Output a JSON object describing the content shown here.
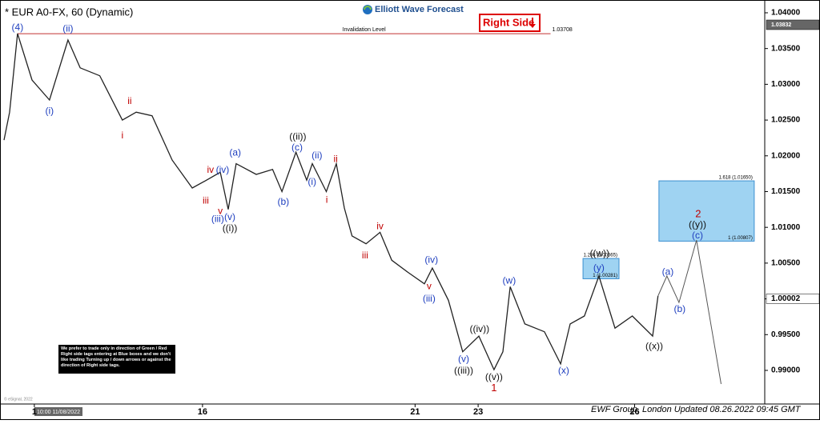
{
  "chart_data": {
    "type": "line",
    "title": "* EUR A0-FX, 60 (Dynamic)",
    "logo": "Elliott Wave Forecast",
    "right_side_tag": "Right Side",
    "copyright": "© eSignal, 2022",
    "cursor_label": "10:00 11/08/2022",
    "footer": "EWF Group, London Updated 08.26.2022 09:45 GMT",
    "disclaimer": "We prefer to trade only in direction of Green / Red Right side tags entering at Blue boxes and we don't like trading Turning up / down arrows or against the direction of Right side tags.",
    "xlim": [
      -1.7,
      325.7
    ],
    "ylim": [
      0.9853,
      1.04134
    ],
    "xticks": [
      {
        "value": 13,
        "label": "1"
      },
      {
        "value": 85,
        "label": "16"
      },
      {
        "value": 176,
        "label": "21"
      },
      {
        "value": 203,
        "label": "23"
      },
      {
        "value": 270,
        "label": "26"
      }
    ],
    "yticks": [
      {
        "value": 0.99,
        "label": "0.99000"
      },
      {
        "value": 0.995,
        "label": "0.99500"
      },
      {
        "value": 1.0,
        "label": "1.00000"
      },
      {
        "value": 1.005,
        "label": "1.00500"
      },
      {
        "value": 1.01,
        "label": "1.01000"
      },
      {
        "value": 1.015,
        "label": "1.01500"
      },
      {
        "value": 1.02,
        "label": "1.02000"
      },
      {
        "value": 1.025,
        "label": "1.02500"
      },
      {
        "value": 1.03,
        "label": "1.03000"
      },
      {
        "value": 1.035,
        "label": "1.03500"
      },
      {
        "value": 1.04,
        "label": "1.04000"
      }
    ],
    "x": [
      0,
      2.4,
      5.8,
      12,
      19.5,
      27.4,
      32.6,
      41,
      50.7,
      56.6,
      63.4,
      72,
      80.6,
      86.7,
      92.6,
      96,
      99.4,
      108,
      115,
      119,
      125,
      129.6,
      132,
      138,
      142.3,
      145.7,
      149,
      155,
      161,
      166,
      173,
      180,
      183.4,
      190.3,
      196.4,
      203.3,
      209.8,
      213.6,
      216.7,
      223,
      231.4,
      238.3,
      242.4,
      248.5,
      254.7,
      261.6,
      269,
      277.7,
      280,
      283.8,
      289,
      296.5,
      307
    ],
    "series": [
      {
        "color": "#222222",
        "values": [
          1.0222,
          1.0261,
          1.0371,
          1.0306,
          1.0278,
          1.0362,
          1.0323,
          1.0312,
          1.025,
          1.0261,
          1.0256,
          1.0194,
          1.0155,
          1.0166,
          1.0177,
          1.0125,
          1.0189,
          1.0174,
          1.0181,
          1.015,
          1.0205,
          1.0166,
          1.0189,
          1.015,
          1.0189,
          1.0127,
          1.0088,
          1.0077,
          1.0093,
          1.0054,
          1.0037,
          1.0021,
          1.0043,
          0.9998,
          0.9926,
          0.9948,
          0.9901,
          0.9926,
          1.0017,
          0.9965,
          0.9954,
          0.9909,
          0.9965,
          0.9976,
          1.0032,
          0.9959,
          0.9976,
          0.9948,
          1.0004,
          null,
          null,
          null,
          null
        ]
      },
      {
        "color": "#555555",
        "values": [
          null,
          null,
          null,
          null,
          null,
          null,
          null,
          null,
          null,
          null,
          null,
          null,
          null,
          null,
          null,
          null,
          null,
          null,
          null,
          null,
          null,
          null,
          null,
          null,
          null,
          null,
          null,
          null,
          null,
          null,
          null,
          null,
          null,
          null,
          null,
          null,
          null,
          null,
          null,
          null,
          null,
          null,
          null,
          null,
          null,
          null,
          null,
          null,
          1.0004,
          1.0032,
          0.9995,
          1.0082,
          0.9881
        ]
      }
    ],
    "invalidation": {
      "text": "Invalidation Level",
      "value": 1.03708,
      "label": "1.03708",
      "x": [
        5.8,
        234
      ]
    },
    "price_tags": [
      {
        "value": 1.03832,
        "label": "1.03832"
      },
      {
        "value": 1.00002,
        "label": "1.00002"
      }
    ],
    "boxes": [
      {
        "x": [
          247.9,
          263.3
        ],
        "y": [
          1.00281,
          1.00565
        ],
        "upper_label": "1.236 (1.00565)",
        "lower_label": "1 (1.00281)"
      },
      {
        "x": [
          280.4,
          321.2
        ],
        "y": [
          1.00807,
          1.0165
        ],
        "upper_label": "1.618 (1.01650)",
        "lower_label": "1 (1.00807)"
      }
    ],
    "annotations": [
      {
        "text": "(4)",
        "x": 5.8,
        "y": 1.0379,
        "color": "#1f3fbf"
      },
      {
        "text": "(ii)",
        "x": 27.4,
        "y": 1.0377,
        "color": "#1f3fbf"
      },
      {
        "text": "(i)",
        "x": 19.5,
        "y": 1.0262,
        "color": "#1f3fbf"
      },
      {
        "text": "ii",
        "x": 53.8,
        "y": 1.0276,
        "color": "#c00000"
      },
      {
        "text": "i",
        "x": 50.7,
        "y": 1.0228,
        "color": "#c00000"
      },
      {
        "text": "(a)",
        "x": 99,
        "y": 1.0204,
        "color": "#1f3fbf"
      },
      {
        "text": "iv",
        "x": 88.4,
        "y": 1.018,
        "color": "#c00000"
      },
      {
        "text": "(iv)",
        "x": 93.6,
        "y": 1.018,
        "color": "#1f3fbf"
      },
      {
        "text": "iii",
        "x": 86.4,
        "y": 1.0137,
        "color": "#c00000"
      },
      {
        "text": "v",
        "x": 92.6,
        "y": 1.0122,
        "color": "#c00000"
      },
      {
        "text": "(iii)",
        "x": 91.5,
        "y": 1.0111,
        "color": "#1f3fbf"
      },
      {
        "text": "(v)",
        "x": 96.7,
        "y": 1.0114,
        "color": "#1f3fbf"
      },
      {
        "text": "((i))",
        "x": 96.7,
        "y": 1.0098,
        "color": "#111111"
      },
      {
        "text": "((ii))",
        "x": 125.8,
        "y": 1.0226,
        "color": "#111111"
      },
      {
        "text": "(c)",
        "x": 125.5,
        "y": 1.0211,
        "color": "#1f3fbf"
      },
      {
        "text": "(ii)",
        "x": 134,
        "y": 1.02,
        "color": "#1f3fbf"
      },
      {
        "text": "(i)",
        "x": 131.9,
        "y": 1.0163,
        "color": "#1f3fbf"
      },
      {
        "text": "(b)",
        "x": 119.6,
        "y": 1.0135,
        "color": "#1f3fbf"
      },
      {
        "text": "ii",
        "x": 142,
        "y": 1.0195,
        "color": "#c00000"
      },
      {
        "text": "i",
        "x": 138.2,
        "y": 1.0138,
        "color": "#c00000"
      },
      {
        "text": "iv",
        "x": 161,
        "y": 1.0101,
        "color": "#c00000"
      },
      {
        "text": "iii",
        "x": 154.6,
        "y": 1.006,
        "color": "#c00000"
      },
      {
        "text": "(iv)",
        "x": 183,
        "y": 1.0054,
        "color": "#1f3fbf"
      },
      {
        "text": "v",
        "x": 182,
        "y": 1.0017,
        "color": "#c00000"
      },
      {
        "text": "(iii)",
        "x": 182,
        "y": 1.0,
        "color": "#1f3fbf"
      },
      {
        "text": "((iv))",
        "x": 203.6,
        "y": 0.9957,
        "color": "#111111"
      },
      {
        "text": "(v)",
        "x": 196.8,
        "y": 0.9915,
        "color": "#1f3fbf"
      },
      {
        "text": "((iii))",
        "x": 196.8,
        "y": 0.9899,
        "color": "#111111"
      },
      {
        "text": "((v))",
        "x": 209.8,
        "y": 0.989,
        "color": "#111111"
      },
      {
        "text": "1",
        "x": 209.8,
        "y": 0.9875,
        "color": "#c00000"
      },
      {
        "text": "(w)",
        "x": 216.3,
        "y": 1.0025,
        "color": "#1f3fbf"
      },
      {
        "text": "(x)",
        "x": 239.6,
        "y": 0.9899,
        "color": "#1f3fbf"
      },
      {
        "text": "((w))",
        "x": 255,
        "y": 1.0063,
        "color": "#111111"
      },
      {
        "text": "(y)",
        "x": 254.7,
        "y": 1.0043,
        "color": "#1f3fbf"
      },
      {
        "text": "((x))",
        "x": 278.4,
        "y": 0.9933,
        "color": "#111111"
      },
      {
        "text": "(a)",
        "x": 284.2,
        "y": 1.0037,
        "color": "#1f3fbf"
      },
      {
        "text": "(b)",
        "x": 289.3,
        "y": 0.9985,
        "color": "#1f3fbf"
      },
      {
        "text": "2",
        "x": 297.2,
        "y": 1.0118,
        "color": "#c00000"
      },
      {
        "text": "((y))",
        "x": 296.9,
        "y": 1.0103,
        "color": "#111111"
      },
      {
        "text": "(c)",
        "x": 296.9,
        "y": 1.0088,
        "color": "#1f3fbf"
      }
    ]
  }
}
